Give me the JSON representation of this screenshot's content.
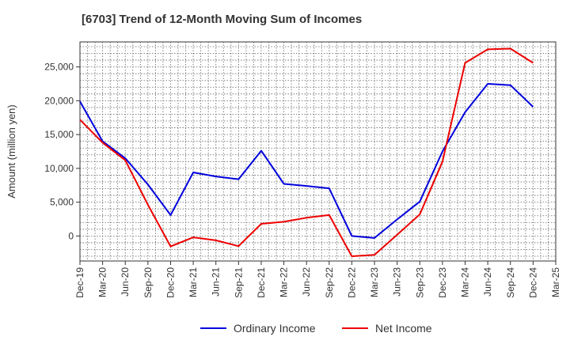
{
  "chart_data": {
    "type": "line",
    "title": "[6703]  Trend of 12-Month Moving Sum of Incomes",
    "xlabel": "",
    "ylabel": "Amount (million yen)",
    "ylim": [
      -3700,
      28700
    ],
    "yticks": [
      0,
      5000,
      10000,
      15000,
      20000,
      25000
    ],
    "ytick_labels": [
      "0",
      "5,000",
      "10,000",
      "15,000",
      "20,000",
      "25,000"
    ],
    "grid": true,
    "legend": "bottom-center",
    "x_tick_labels": [
      "Dec-19",
      "Mar-20",
      "Jun-20",
      "Sep-20",
      "Dec-20",
      "Mar-21",
      "Jun-21",
      "Sep-21",
      "Dec-21",
      "Mar-22",
      "Jun-22",
      "Sep-22",
      "Dec-22",
      "Mar-23",
      "Jun-23",
      "Sep-23",
      "Dec-23",
      "Mar-24",
      "Jun-24",
      "Sep-24",
      "Dec-24",
      "Mar-25"
    ],
    "categories": [
      "Dec-19",
      "Mar-20",
      "Jun-20",
      "Sep-20",
      "Dec-20",
      "Mar-21",
      "Jun-21",
      "Sep-21",
      "Dec-21",
      "Mar-22",
      "Jun-22",
      "Sep-22",
      "Dec-22",
      "Mar-23",
      "Jun-23",
      "Sep-23",
      "Dec-23",
      "Mar-24",
      "Jun-24",
      "Sep-24",
      "Dec-24"
    ],
    "series": [
      {
        "name": "Ordinary Income",
        "color": "#0000dd",
        "values": [
          19900,
          14000,
          11500,
          7600,
          3100,
          9400,
          8800,
          8400,
          12600,
          7700,
          7400,
          7050,
          0,
          -300,
          2450,
          5100,
          12500,
          18300,
          22500,
          22300,
          19100
        ]
      },
      {
        "name": "Net Income",
        "color": "#ee0000",
        "values": [
          17200,
          13800,
          11200,
          4600,
          -1550,
          -200,
          -650,
          -1500,
          1800,
          2100,
          2700,
          3100,
          -3000,
          -2800,
          200,
          3200,
          11000,
          25600,
          27600,
          27700,
          25600
        ]
      }
    ]
  }
}
